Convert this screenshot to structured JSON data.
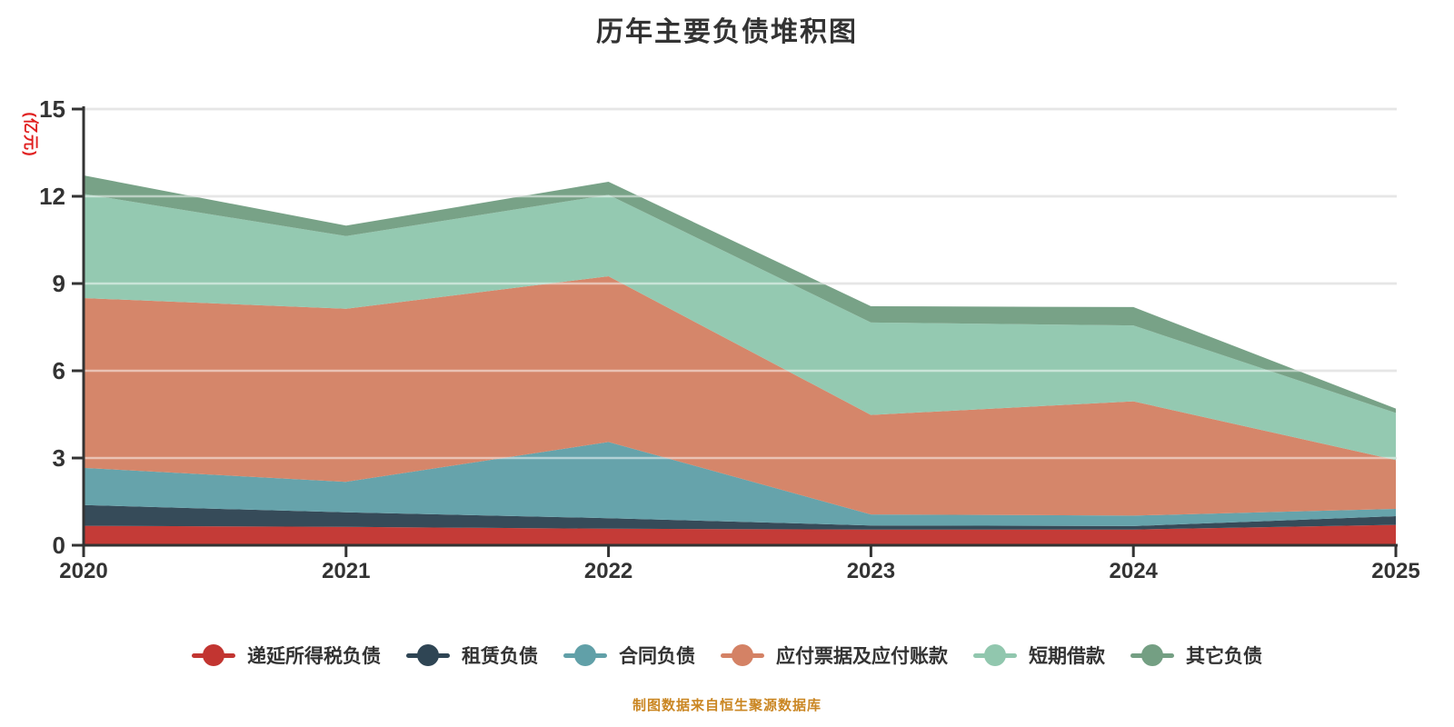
{
  "title": "历年主要负债堆积图",
  "y_axis_name": "(亿元)",
  "caption": "制图数据来自恒生聚源数据库",
  "colors": {
    "title_text": "#333333",
    "axis_line": "#333333",
    "tick_label": "#333333",
    "gridline": "#cccccc",
    "y_axis_name_red": "#e01f1f",
    "caption_gold": "#ca8622",
    "background": "#ffffff"
  },
  "chart_data": {
    "type": "area",
    "stacked": true,
    "title": "历年主要负债堆积图",
    "xlabel": "",
    "ylabel": "(亿元)",
    "x": [
      "2020",
      "2021",
      "2022",
      "2023",
      "2024",
      "2025"
    ],
    "ylim": [
      0,
      15
    ],
    "ytick_step": 3,
    "yticks": [
      "0",
      "3",
      "6",
      "9",
      "12",
      "15"
    ],
    "grid": true,
    "legend_position": "bottom",
    "series": [
      {
        "name": "递延所得税负债",
        "color": "#c23531",
        "values": [
          0.67,
          0.63,
          0.57,
          0.54,
          0.54,
          0.7
        ]
      },
      {
        "name": "租赁负债",
        "color": "#2f4554",
        "values": [
          0.71,
          0.5,
          0.36,
          0.14,
          0.12,
          0.3
        ]
      },
      {
        "name": "合同负债",
        "color": "#61a0a8",
        "values": [
          1.28,
          1.05,
          2.62,
          0.38,
          0.36,
          0.25
        ]
      },
      {
        "name": "应付票据及应付账款",
        "color": "#d48265",
        "values": [
          5.84,
          5.95,
          5.7,
          3.42,
          3.93,
          1.68
        ]
      },
      {
        "name": "短期借款",
        "color": "#91c7ae",
        "values": [
          3.58,
          2.5,
          2.8,
          3.18,
          2.61,
          1.62
        ]
      },
      {
        "name": "其它负债",
        "color": "#749f83",
        "values": [
          0.64,
          0.36,
          0.45,
          0.56,
          0.63,
          0.15
        ]
      }
    ]
  }
}
